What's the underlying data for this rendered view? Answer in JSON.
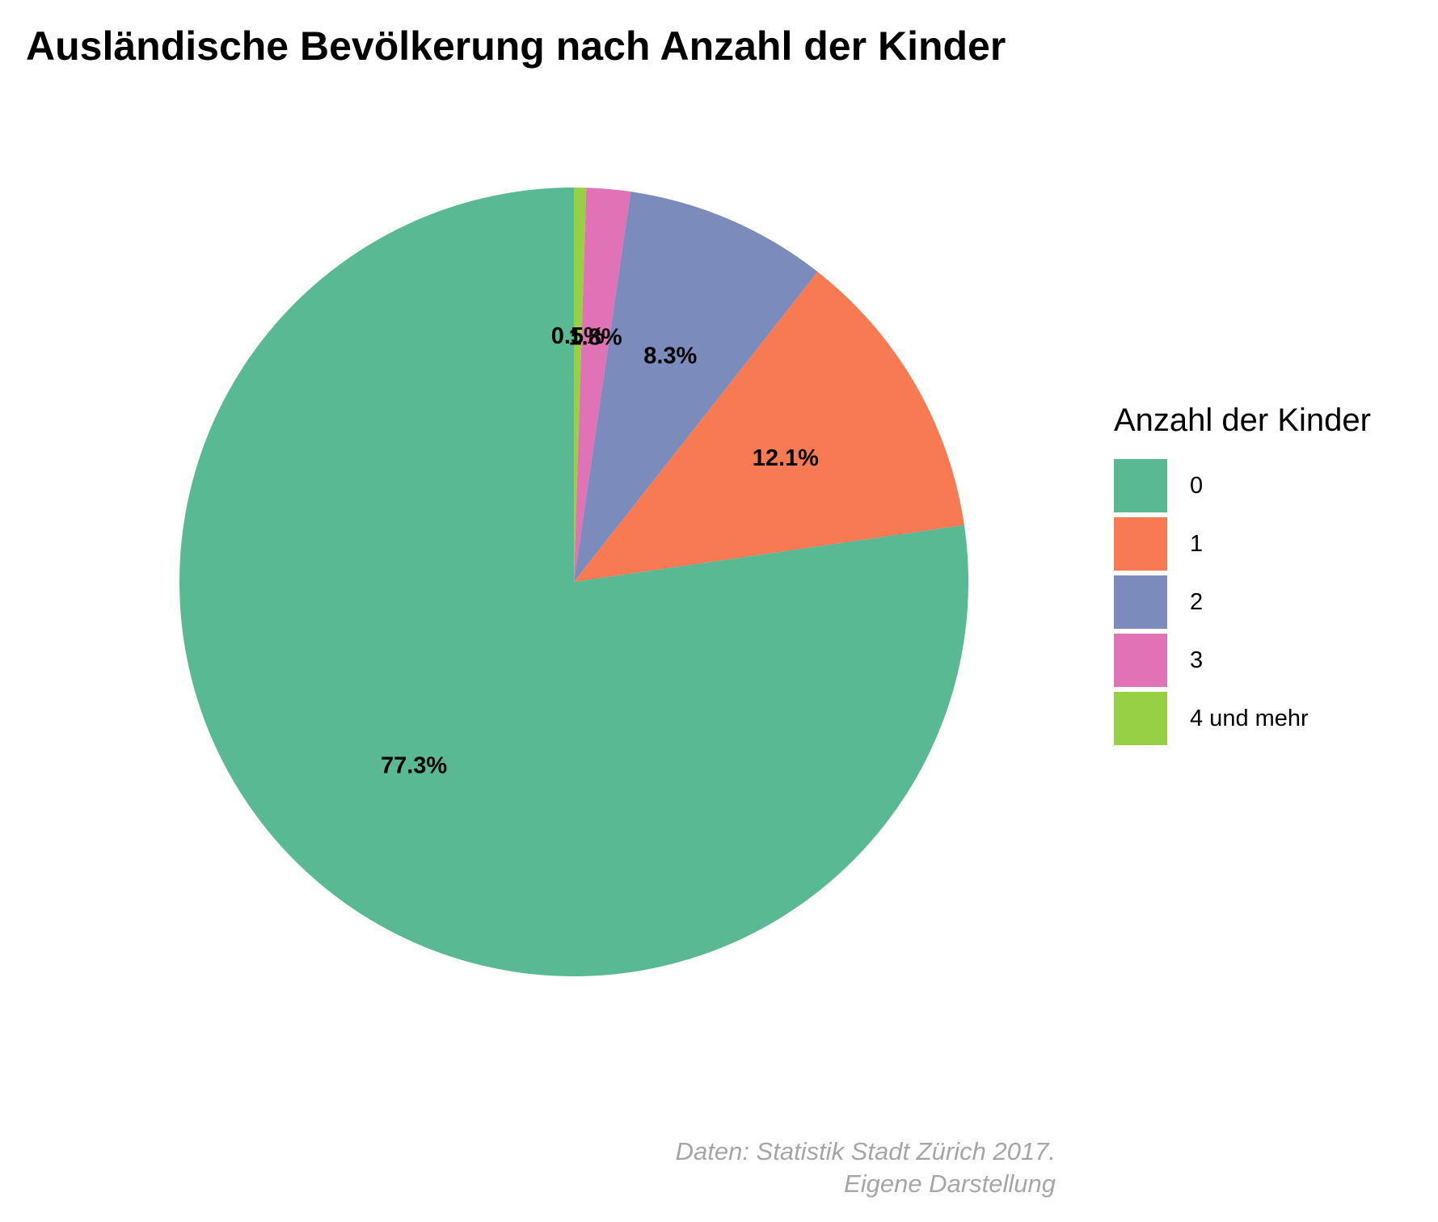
{
  "chart_data": {
    "type": "pie",
    "title": "Ausländische Bevölkerung nach Anzahl der Kinder",
    "legend_title": "Anzahl der Kinder",
    "legend_position": "right",
    "start_angle": "12 o'clock",
    "direction": "clockwise",
    "categories": [
      "0",
      "1",
      "2",
      "3",
      "4 und mehr"
    ],
    "values": [
      77.3,
      12.1,
      8.3,
      1.8,
      0.5
    ],
    "labels": [
      "77.3%",
      "12.1%",
      "8.3%",
      "1.8%",
      "0.5%"
    ],
    "colors": [
      "#58b993",
      "#f77a52",
      "#7b8cbc",
      "#df73b5",
      "#98d045"
    ],
    "clockwise_order": [
      "4 und mehr",
      "3",
      "2",
      "1",
      "0"
    ]
  },
  "caption": {
    "line1": "Daten: Statistik Stadt Zürich 2017.",
    "line2": "Eigene Darstellung"
  }
}
